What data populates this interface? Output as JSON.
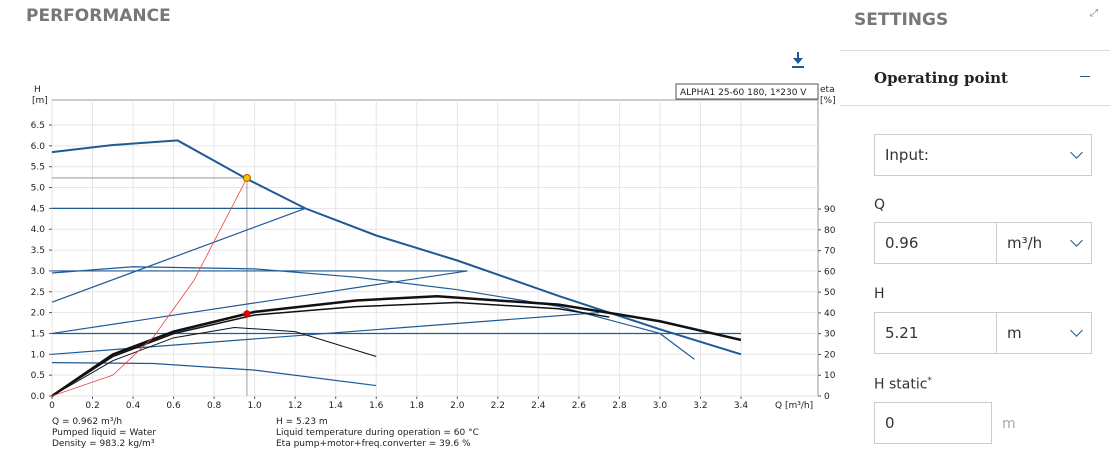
{
  "header": {
    "title": "PERFORMANCE"
  },
  "chart_data": {
    "type": "line",
    "legend_text": "ALPHA1 25-60 180, 1*230 V",
    "y_label": "H",
    "y_unit": "[m]",
    "y2_label": "eta",
    "y2_unit": "[%]",
    "x_label": "Q [m³/h]",
    "xlim": [
      0,
      3.78
    ],
    "ylim": [
      0,
      7.1
    ],
    "y2lim": [
      0,
      142.5
    ],
    "grid": true,
    "xticks": [
      0,
      0.2,
      0.4,
      0.6,
      0.8,
      {
        "value": 1,
        "label": "1.0"
      },
      1.2,
      1.4,
      1.6,
      1.8,
      {
        "value": 2,
        "label": "2.0"
      },
      2.2,
      2.4,
      2.6,
      2.8,
      {
        "value": 3,
        "label": "3.0"
      },
      3.2,
      3.4
    ],
    "yticks": [
      {
        "value": 0,
        "label": "0.0"
      },
      0.5,
      {
        "value": 1,
        "label": "1.0"
      },
      1.5,
      {
        "value": 2,
        "label": "2.0"
      },
      2.5,
      {
        "value": 3,
        "label": "3.0"
      },
      3.5,
      {
        "value": 4,
        "label": "4.0"
      },
      4.5,
      {
        "value": 5,
        "label": "5.0"
      },
      5.5,
      {
        "value": 6,
        "label": "6.0"
      },
      6.5
    ],
    "y2ticks": [
      0,
      10,
      20,
      30,
      40,
      50,
      60,
      70,
      80,
      90
    ],
    "series": [
      {
        "color": "#1f5a96",
        "line_width": 2,
        "x": [
          0,
          0.3,
          0.62,
          0.96,
          1.25,
          1.6,
          2.0,
          2.5,
          3.0,
          3.4
        ],
        "values": [
          5.85,
          6.02,
          6.13,
          5.21,
          4.5,
          3.85,
          3.25,
          2.4,
          1.6,
          1.0
        ]
      },
      {
        "color": "#1f5a96",
        "line_width": 1.2,
        "x": [
          0,
          1.25
        ],
        "values": [
          4.5,
          4.5
        ]
      },
      {
        "color": "#1f5a96",
        "line_width": 1.2,
        "x": [
          0,
          1.25
        ],
        "values": [
          2.25,
          4.5
        ]
      },
      {
        "color": "#1f5a96",
        "line_width": 1.2,
        "x": [
          0,
          2.05
        ],
        "values": [
          3.0,
          3.0
        ]
      },
      {
        "color": "#1f5a96",
        "line_width": 1.2,
        "x": [
          0,
          0.4,
          1.0,
          1.5,
          2.0,
          2.5,
          3.0,
          3.17
        ],
        "values": [
          2.95,
          3.1,
          3.05,
          2.85,
          2.55,
          2.15,
          1.5,
          0.88
        ]
      },
      {
        "color": "#1f5a96",
        "line_width": 1.2,
        "x": [
          0,
          2.05
        ],
        "values": [
          1.5,
          3.0
        ]
      },
      {
        "color": "#1f5a96",
        "line_width": 1.2,
        "x": [
          0,
          3.4
        ],
        "values": [
          1.5,
          1.5
        ]
      },
      {
        "color": "#1f5a96",
        "line_width": 1.2,
        "x": [
          0,
          2.7
        ],
        "values": [
          1.0,
          2.0
        ]
      },
      {
        "color": "#1f5a96",
        "line_width": 1.2,
        "x": [
          0,
          0.5,
          1.0,
          1.6
        ],
        "values": [
          0.8,
          0.78,
          0.62,
          0.25
        ]
      },
      {
        "color": "#111111",
        "line_width": 2.5,
        "axis": "y2",
        "x": [
          0,
          0.3,
          0.6,
          1.0,
          1.5,
          1.9,
          2.5,
          3.0,
          3.4
        ],
        "values": [
          0,
          20,
          31,
          40.5,
          46,
          48,
          44,
          36,
          27
        ]
      },
      {
        "color": "#111111",
        "line_width": 1.5,
        "axis": "y2",
        "x": [
          0,
          0.3,
          0.6,
          1.0,
          1.5,
          2.0,
          2.5,
          2.75
        ],
        "values": [
          0,
          19,
          30,
          39,
          43,
          45,
          42,
          38
        ]
      },
      {
        "color": "#111111",
        "line_width": 1,
        "axis": "y2",
        "x": [
          0,
          0.3,
          0.6,
          0.9,
          1.2,
          1.6
        ],
        "values": [
          0,
          17,
          28,
          33,
          31,
          19
        ]
      },
      {
        "color": "#ee4444",
        "line_width": 0.8,
        "x": [
          0,
          0.3,
          0.5,
          0.7,
          0.96
        ],
        "values": [
          0,
          0.5,
          1.41,
          2.77,
          5.21
        ]
      }
    ],
    "points": [
      {
        "x": 0.962,
        "y": 5.23,
        "color": "#f5c400"
      },
      {
        "x": 0.962,
        "y": 39.6,
        "axis": "y2",
        "color": "#e00000"
      }
    ],
    "info_left": [
      "Q = 0.962 m³/h",
      "Pumped liquid = Water",
      "Density = 983.2 kg/m³"
    ],
    "info_right": [
      "H = 5.23 m",
      "Liquid temperature during operation = 60 °C",
      "Eta pump+motor+freq.converter = 39.6 %"
    ]
  },
  "settings": {
    "title": "SETTINGS",
    "section": "Operating point",
    "input_label": "Input:",
    "q_label": "Q",
    "q_value": "0.96",
    "q_unit": "m³/h",
    "h_label": "H",
    "h_value": "5.21",
    "h_unit": "m",
    "hstatic_label": "H static",
    "required": "*",
    "hstatic_value": "0",
    "hstatic_unit": "m"
  }
}
